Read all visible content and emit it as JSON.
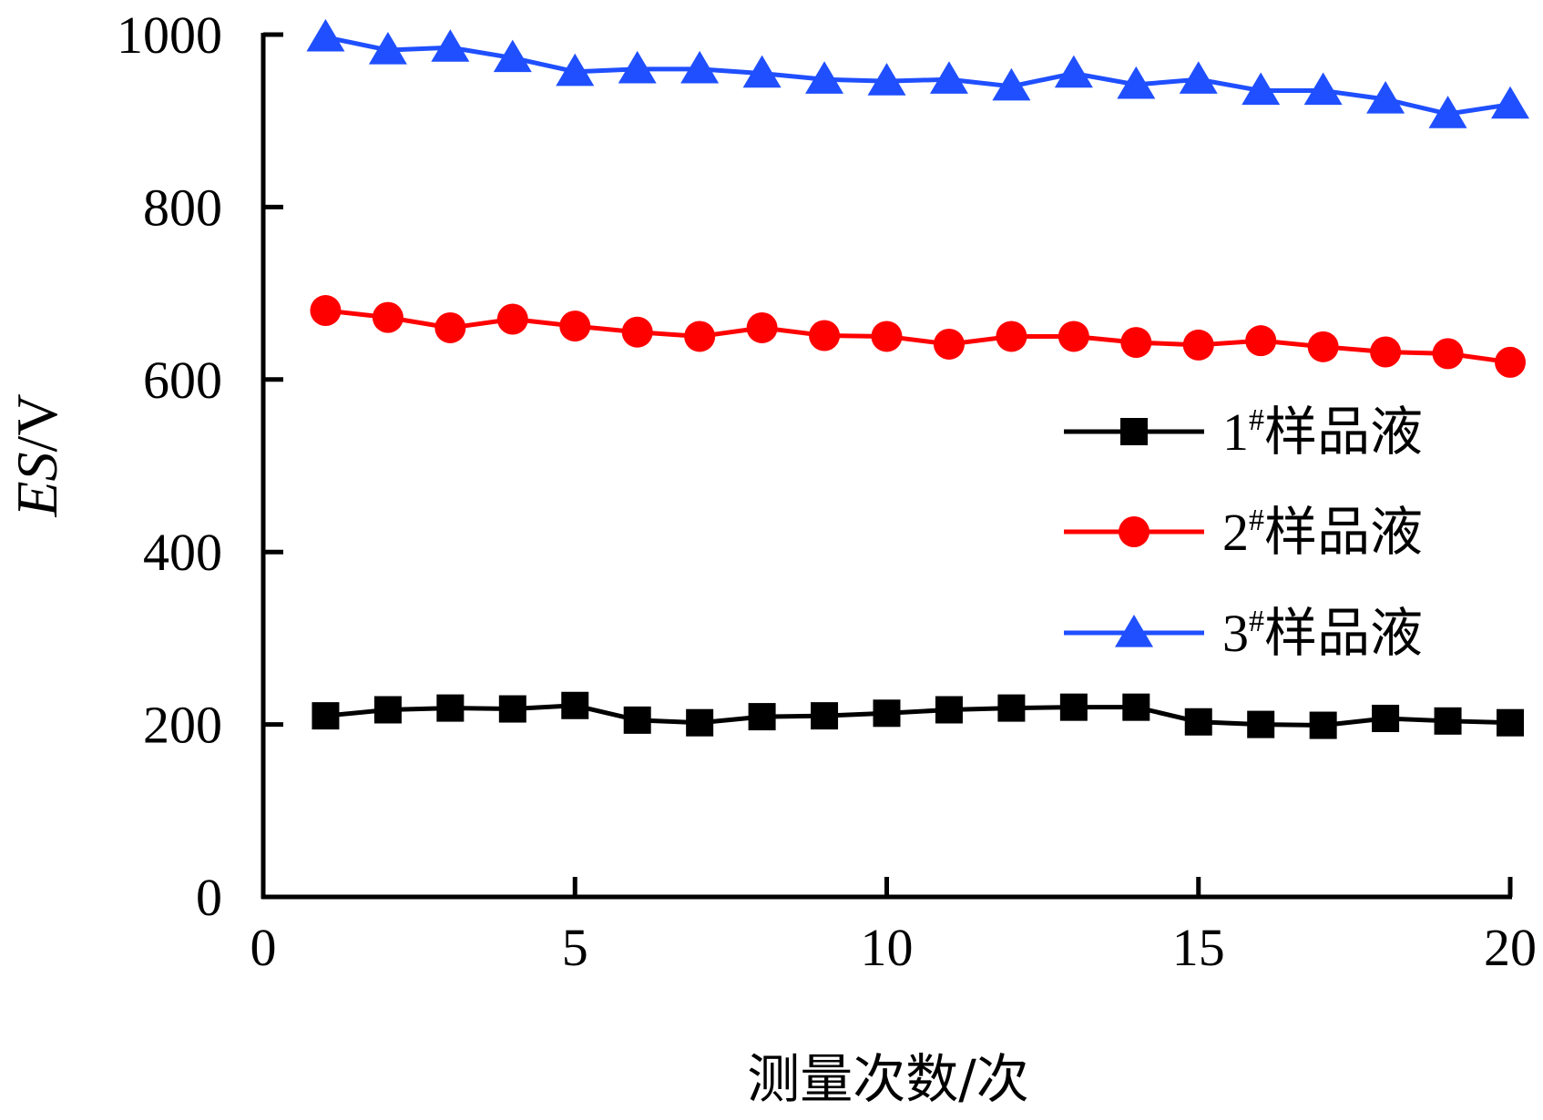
{
  "chart_data": {
    "type": "line",
    "title": "",
    "xlabel": "测量次数/次",
    "ylabel_italic": "ES",
    "ylabel_unit": "/V",
    "xlim": [
      0,
      20
    ],
    "ylim": [
      0,
      1000
    ],
    "xticks": [
      0,
      5,
      10,
      15,
      20
    ],
    "yticks": [
      0,
      200,
      400,
      600,
      800,
      1000
    ],
    "grid": false,
    "legend_position": "right-middle",
    "x": [
      1,
      2,
      3,
      4,
      5,
      6,
      7,
      8,
      9,
      10,
      11,
      12,
      13,
      14,
      15,
      16,
      17,
      18,
      19,
      20
    ],
    "series": [
      {
        "name": "样品液",
        "prefix": "1",
        "sup": "#",
        "color": "#000000",
        "marker": "square",
        "values": [
          210,
          217,
          219,
          218,
          222,
          205,
          202,
          209,
          210,
          213,
          217,
          219,
          220,
          220,
          203,
          200,
          199,
          207,
          204,
          202
        ]
      },
      {
        "name": "样品液",
        "prefix": "2",
        "sup": "#",
        "color": "#ff0000",
        "marker": "circle",
        "values": [
          680,
          672,
          660,
          670,
          662,
          655,
          650,
          660,
          651,
          650,
          641,
          650,
          650,
          643,
          640,
          645,
          638,
          632,
          630,
          620
        ]
      },
      {
        "name": "样品液",
        "prefix": "3",
        "sup": "#",
        "color": "#1f4fff",
        "marker": "triangle",
        "values": [
          997,
          982,
          985,
          973,
          957,
          960,
          960,
          955,
          948,
          946,
          948,
          940,
          955,
          942,
          948,
          935,
          935,
          925,
          908,
          919
        ]
      }
    ]
  }
}
